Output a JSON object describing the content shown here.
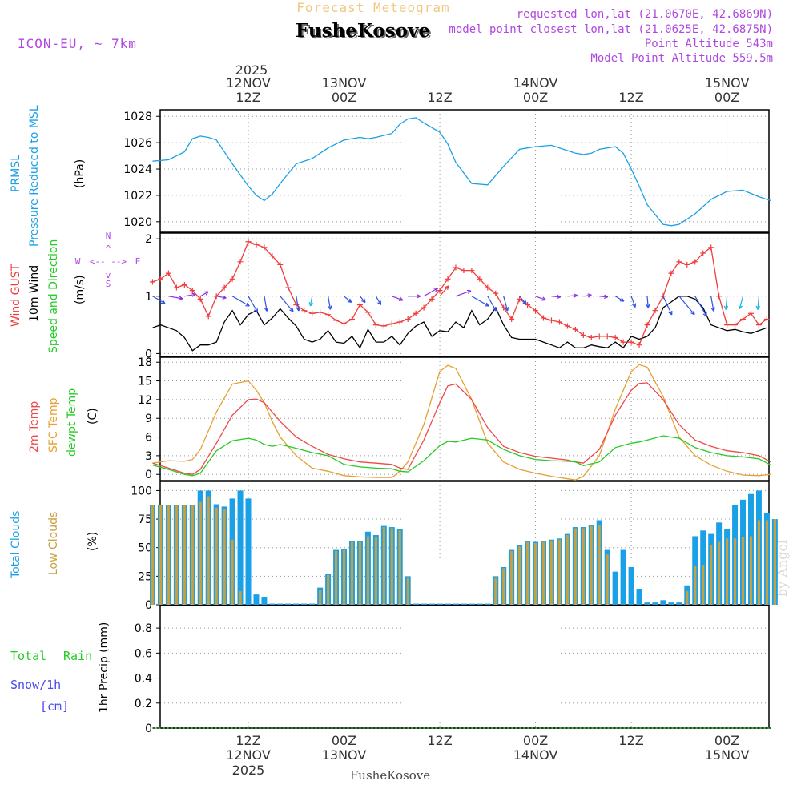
{
  "header": {
    "title": "Forecast Meteogram",
    "station": "FusheKosove",
    "model": "ICON-EU, ~ 7km",
    "requested": "requested lon,lat (21.0670E, 42.6869N)",
    "closest": "model point closest lon,lat (21.0625E, 42.6875N)",
    "point_alt": "Point Altitude 543m",
    "model_alt": "Model Point Altitude 559.5m",
    "footer_station": "FusheKosove",
    "watermark": "by Angel"
  },
  "time_axis": {
    "year": "2025",
    "top_ticks": [
      {
        "h": 12,
        "date": "12NOV",
        "hour": "12Z"
      },
      {
        "h": 24,
        "date": "13NOV",
        "hour": "00Z"
      },
      {
        "h": 36,
        "date": "",
        "hour": "12Z"
      },
      {
        "h": 48,
        "date": "14NOV",
        "hour": "00Z"
      },
      {
        "h": 60,
        "date": "",
        "hour": "12Z"
      },
      {
        "h": 72,
        "date": "15NOV",
        "hour": "00Z"
      }
    ],
    "bottom_ticks": [
      {
        "h": 12,
        "hour": "12Z",
        "date": "12NOV"
      },
      {
        "h": 24,
        "hour": "00Z",
        "date": "13NOV"
      },
      {
        "h": 36,
        "hour": "12Z",
        "date": ""
      },
      {
        "h": 48,
        "hour": "00Z",
        "date": "14NOV"
      },
      {
        "h": 60,
        "hour": "12Z",
        "date": ""
      },
      {
        "h": 72,
        "hour": "00Z",
        "date": "15NOV"
      }
    ],
    "hours_range": [
      0,
      77.5
    ]
  },
  "panel_labels": {
    "p1": [
      "PRMSL",
      "Pressure Reduced to MSL",
      "(hPa)"
    ],
    "p2": [
      "Wind GUST",
      "10m Wind",
      "Speed and Direction",
      "(m/s)"
    ],
    "compass": [
      "N",
      "W",
      "E",
      "S"
    ],
    "p3": [
      "2m Temp",
      "SFC Temp",
      "dewpt Temp",
      "(C)"
    ],
    "p4": [
      "Total Clouds",
      "Low Clouds",
      "(%)"
    ],
    "p5": [
      "Total",
      "Rain",
      "Snow/1h",
      "[cm]",
      "1hr Precip (mm)"
    ]
  },
  "colors": {
    "pressure": "#1aa0e6",
    "gust": "#f03c3c",
    "wind": "#000000",
    "t2m": "#f04848",
    "tsfc": "#e6a030",
    "dew": "#22cc22",
    "total_cloud": "#1aa0e6",
    "low_cloud": "#c8a040",
    "title": "#f0c880",
    "meta": "#b048e0",
    "rain": "#22cc22",
    "snow": "#4848f0"
  },
  "chart_data": [
    {
      "type": "line",
      "title": "PRMSL Pressure Reduced to MSL",
      "ylabel": "(hPa)",
      "ylim": [
        1019.2,
        1028.5
      ],
      "yticks": [
        1020,
        1022,
        1024,
        1026,
        1028
      ],
      "x": [
        0,
        2,
        4,
        5,
        6,
        7,
        8,
        10,
        12,
        13,
        14,
        15,
        16,
        18,
        20,
        21,
        22,
        24,
        26,
        27,
        28,
        30,
        31,
        32,
        33,
        34,
        36,
        37,
        38,
        40,
        42,
        44,
        46,
        47,
        48,
        50,
        52,
        53,
        54,
        55,
        56,
        58,
        59,
        60,
        61,
        62,
        64,
        65,
        66,
        68,
        70,
        72,
        74,
        76,
        77.5
      ],
      "series": [
        {
          "name": "PRMSL",
          "values": [
            1024.6,
            1024.7,
            1025.3,
            1026.3,
            1026.5,
            1026.4,
            1026.2,
            1024.4,
            1022.7,
            1022.0,
            1021.6,
            1022.1,
            1022.9,
            1024.4,
            1024.8,
            1025.2,
            1025.6,
            1026.2,
            1026.4,
            1026.3,
            1026.4,
            1026.7,
            1027.4,
            1027.8,
            1027.9,
            1027.5,
            1026.8,
            1025.9,
            1024.5,
            1022.9,
            1022.8,
            1024.2,
            1025.5,
            1025.6,
            1025.7,
            1025.8,
            1025.4,
            1025.2,
            1025.1,
            1025.2,
            1025.5,
            1025.7,
            1025.2,
            1024.0,
            1022.7,
            1021.3,
            1019.8,
            1019.7,
            1019.8,
            1020.6,
            1021.7,
            1022.3,
            1022.4,
            1021.9,
            1021.6
          ]
        }
      ]
    },
    {
      "type": "line",
      "title": "Wind GUST / 10m Wind Speed and Direction",
      "ylabel": "(m/s)",
      "ylim": [
        -0.05,
        2.1
      ],
      "yticks": [
        0,
        1,
        2
      ],
      "x_start": 0,
      "x_step": 1,
      "series": [
        {
          "name": "Wind GUST",
          "values": [
            1.25,
            1.3,
            1.4,
            1.15,
            1.2,
            1.1,
            0.95,
            0.65,
            1.0,
            1.15,
            1.3,
            1.6,
            1.95,
            1.9,
            1.85,
            1.7,
            1.55,
            1.15,
            0.85,
            0.75,
            0.7,
            0.72,
            0.68,
            0.58,
            0.52,
            0.6,
            0.85,
            0.72,
            0.5,
            0.48,
            0.52,
            0.55,
            0.6,
            0.7,
            0.8,
            0.95,
            1.1,
            1.3,
            1.5,
            1.45,
            1.45,
            1.3,
            1.15,
            1.05,
            0.8,
            0.6,
            0.95,
            0.85,
            0.75,
            0.62,
            0.58,
            0.55,
            0.48,
            0.42,
            0.32,
            0.28,
            0.3,
            0.3,
            0.28,
            0.2,
            0.2,
            0.15,
            0.5,
            0.75,
            1.0,
            1.4,
            1.6,
            1.55,
            1.6,
            1.75,
            1.85,
            1.0,
            0.5,
            0.5,
            0.6,
            0.7,
            0.5,
            0.6
          ]
        },
        {
          "name": "10m Wind",
          "values": [
            0.45,
            0.5,
            0.45,
            0.4,
            0.28,
            0.05,
            0.15,
            0.15,
            0.2,
            0.55,
            0.75,
            0.5,
            0.68,
            0.75,
            0.5,
            0.62,
            0.78,
            0.62,
            0.48,
            0.25,
            0.2,
            0.25,
            0.4,
            0.2,
            0.18,
            0.3,
            0.1,
            0.42,
            0.2,
            0.2,
            0.3,
            0.15,
            0.35,
            0.48,
            0.55,
            0.3,
            0.4,
            0.38,
            0.55,
            0.45,
            0.75,
            0.5,
            0.6,
            0.8,
            0.5,
            0.28,
            0.25,
            0.25,
            0.25,
            0.2,
            0.15,
            0.1,
            0.2,
            0.1,
            0.1,
            0.15,
            0.12,
            0.1,
            0.2,
            0.1,
            0.3,
            0.25,
            0.3,
            0.45,
            0.8,
            0.9,
            1.0,
            1.0,
            0.95,
            0.8,
            0.5,
            0.45,
            0.4,
            0.42,
            0.38,
            0.35,
            0.4,
            0.45
          ]
        },
        {
          "name": "Direction (deg)",
          "values": [
            300,
            290,
            280,
            270,
            260,
            250,
            240,
            260,
            280,
            270,
            300,
            310,
            330,
            340,
            350,
            330,
            320,
            340,
            350,
            0,
            10,
            20,
            350,
            330,
            310,
            300,
            320,
            340,
            330,
            300,
            290,
            280,
            270,
            250,
            240,
            230,
            220,
            230,
            250,
            280,
            300,
            320,
            330,
            340,
            345,
            335,
            320,
            300,
            290,
            280,
            275,
            270,
            265,
            260,
            262,
            268,
            275,
            285,
            300,
            320,
            340,
            350,
            355,
            345,
            335,
            325,
            320,
            320,
            330,
            345,
            350,
            355,
            5,
            10,
            15,
            15,
            5,
            355
          ]
        }
      ]
    },
    {
      "type": "line",
      "title": "2m Temp / SFC Temp / dewpt Temp",
      "ylabel": "(C)",
      "ylim": [
        -1.0,
        18.8
      ],
      "yticks": [
        0,
        3,
        6,
        9,
        12,
        15,
        18
      ],
      "x": [
        0,
        2,
        4,
        5,
        6,
        8,
        10,
        12,
        13,
        14,
        15,
        16,
        18,
        20,
        22,
        24,
        26,
        28,
        30,
        31,
        32,
        34,
        36,
        37,
        38,
        40,
        42,
        44,
        46,
        48,
        50,
        52,
        53,
        54,
        56,
        58,
        60,
        61,
        62,
        64,
        66,
        68,
        70,
        72,
        74,
        76,
        77.5
      ],
      "series": [
        {
          "name": "2m Temp",
          "values": [
            1.8,
            1.0,
            0.2,
            0.0,
            0.8,
            5.0,
            9.5,
            12.0,
            12.1,
            11.5,
            10.0,
            8.5,
            6.0,
            4.5,
            3.2,
            2.5,
            2.0,
            1.8,
            1.6,
            1.0,
            0.8,
            5.5,
            11.5,
            14.2,
            14.5,
            12.0,
            7.5,
            4.5,
            3.5,
            2.9,
            2.6,
            2.3,
            2.0,
            1.8,
            4.0,
            9.5,
            13.5,
            14.6,
            14.7,
            12.0,
            8.0,
            5.5,
            4.5,
            3.8,
            3.5,
            3.0,
            2.0
          ]
        },
        {
          "name": "SFC Temp",
          "values": [
            1.8,
            2.2,
            2.1,
            2.4,
            4.0,
            10.0,
            14.5,
            15.0,
            13.5,
            11.5,
            8.5,
            6.0,
            3.0,
            1.0,
            0.5,
            -0.2,
            -0.4,
            -0.5,
            -0.5,
            0.5,
            2.0,
            8.0,
            16.5,
            17.5,
            17.0,
            12.0,
            5.0,
            2.0,
            0.8,
            0.2,
            -0.3,
            -0.7,
            -0.9,
            -0.3,
            3.0,
            10.5,
            16.5,
            17.6,
            17.2,
            12.5,
            6.0,
            3.0,
            1.5,
            0.5,
            -0.1,
            -0.2,
            0.0
          ]
        },
        {
          "name": "dewpt Temp",
          "values": [
            1.5,
            0.8,
            0.0,
            -0.2,
            0.2,
            3.8,
            5.4,
            5.8,
            5.5,
            4.8,
            4.5,
            4.8,
            4.2,
            3.5,
            3.0,
            1.6,
            1.2,
            1.0,
            0.9,
            0.5,
            0.4,
            2.2,
            4.6,
            5.3,
            5.2,
            5.8,
            5.5,
            4.0,
            3.0,
            2.4,
            2.2,
            2.1,
            2.0,
            1.4,
            2.0,
            4.3,
            5.0,
            5.2,
            5.5,
            6.2,
            5.8,
            4.3,
            3.5,
            3.0,
            2.8,
            2.5,
            1.5
          ]
        }
      ]
    },
    {
      "type": "bar",
      "title": "Total Clouds / Low Clouds",
      "ylabel": "(%)",
      "ylim": [
        0,
        108
      ],
      "yticks": [
        0,
        25,
        50,
        75,
        100
      ],
      "x_start": 0,
      "x_step": 1,
      "series": [
        {
          "name": "Total Clouds",
          "values": [
            87,
            87,
            87,
            87,
            87,
            87,
            100,
            100,
            88,
            86,
            93,
            100,
            93,
            9,
            7,
            1,
            1,
            1,
            1,
            1,
            1,
            15,
            27,
            48,
            49,
            56,
            56,
            64,
            61,
            69,
            68,
            66,
            25,
            1,
            1,
            1,
            1,
            1,
            1,
            1,
            1,
            1,
            1,
            25,
            33,
            48,
            52,
            56,
            55,
            56,
            57,
            58,
            62,
            68,
            68,
            70,
            74,
            48,
            29,
            48,
            33,
            14,
            2,
            2,
            4,
            2,
            2,
            17,
            60,
            65,
            62,
            72,
            66,
            87,
            92,
            97,
            100,
            80,
            75
          ]
        },
        {
          "name": "Low Clouds",
          "values": [
            87,
            87,
            87,
            87,
            87,
            87,
            90,
            95,
            85,
            84,
            57,
            12,
            0,
            0,
            0,
            0,
            0,
            0,
            0,
            0,
            0,
            13,
            26,
            47,
            48,
            55,
            55,
            60,
            59,
            68,
            67,
            65,
            24,
            0,
            0,
            0,
            0,
            0,
            0,
            0,
            0,
            0,
            0,
            24,
            32,
            47,
            51,
            55,
            54,
            55,
            56,
            57,
            61,
            67,
            67,
            69,
            70,
            44,
            0,
            0,
            0,
            0,
            0,
            0,
            0,
            0,
            0,
            12,
            34,
            35,
            52,
            55,
            58,
            58,
            59,
            60,
            74,
            74,
            75
          ]
        }
      ]
    },
    {
      "type": "line",
      "title": "1hr Precip (mm)",
      "ylabel": "1hr Precip (mm)",
      "ylim": [
        0,
        0.98
      ],
      "yticks": [
        0,
        0.2,
        0.4,
        0.6,
        0.8
      ],
      "x": [
        0,
        77.5
      ],
      "series": [
        {
          "name": "Total Rain",
          "values": [
            0,
            0
          ]
        },
        {
          "name": "Snow/1h [cm]",
          "values": [
            0,
            0
          ]
        }
      ]
    }
  ]
}
